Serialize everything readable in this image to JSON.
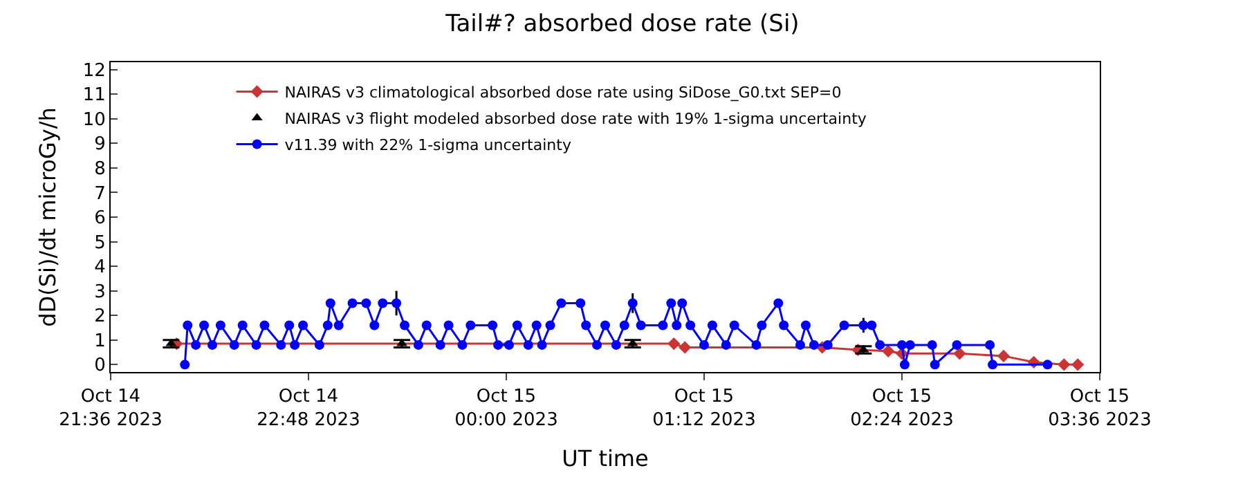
{
  "chart_data": {
    "type": "line",
    "title": "Tail#? absorbed dose rate (Si)",
    "xlabel": "UT time",
    "ylabel": "dD(Si)/dt microGy/h",
    "xlim": [
      "2023-10-14T21:36",
      "2023-10-15T03:36"
    ],
    "xticks": [
      {
        "value": "2023-10-14T21:36",
        "label": "Oct 14\n21:36 2023"
      },
      {
        "value": "2023-10-14T22:48",
        "label": "Oct 14\n22:48 2023"
      },
      {
        "value": "2023-10-15T00:00",
        "label": "Oct 15\n00:00 2023"
      },
      {
        "value": "2023-10-15T01:12",
        "label": "Oct 15\n01:12 2023"
      },
      {
        "value": "2023-10-15T02:24",
        "label": "Oct 15\n02:24 2023"
      },
      {
        "value": "2023-10-15T03:36",
        "label": "Oct 15\n03:36 2023"
      }
    ],
    "ylim": [
      -0.3,
      12.3
    ],
    "yticks": [
      0,
      1,
      2,
      3,
      4,
      5,
      6,
      7,
      8,
      9,
      10,
      11,
      12
    ],
    "legend": "top left",
    "series": [
      {
        "name": "NAIRAS v3 climatological absorbed dose rate using SiDose_G0.txt SEP=0",
        "color": "#cc3333",
        "marker": "diamond",
        "x": [
          "2023-10-14T22:00",
          "2023-10-15T01:01",
          "2023-10-15T01:05",
          "2023-10-15T01:55",
          "2023-10-15T02:08",
          "2023-10-15T02:19",
          "2023-10-15T02:24",
          "2023-10-15T02:45",
          "2023-10-15T03:01",
          "2023-10-15T03:12",
          "2023-10-15T03:23",
          "2023-10-15T03:28"
        ],
        "values": [
          0.85,
          0.85,
          0.7,
          0.7,
          0.6,
          0.55,
          0.45,
          0.45,
          0.35,
          0.1,
          0,
          0
        ]
      },
      {
        "name": "NAIRAS v3 flight modeled absorbed dose rate with 19% 1-sigma uncertainty",
        "color": "#000000",
        "marker": "triangle",
        "type": "scatter",
        "x": [
          "2023-10-14T21:58",
          "2023-10-14T23:22",
          "2023-10-15T00:46",
          "2023-10-15T02:10"
        ],
        "values": [
          0.85,
          0.85,
          0.85,
          0.6
        ],
        "errors": [
          0.15,
          0.15,
          0.15,
          0.15
        ]
      },
      {
        "name": "v11.39 with 22% 1-sigma uncertainty",
        "color": "#0000ff",
        "marker": "circle",
        "x": [
          "2023-10-14T22:03",
          "2023-10-14T22:04",
          "2023-10-14T22:07",
          "2023-10-14T22:10",
          "2023-10-14T22:13",
          "2023-10-14T22:16",
          "2023-10-14T22:21",
          "2023-10-14T22:24",
          "2023-10-14T22:29",
          "2023-10-14T22:32",
          "2023-10-14T22:38",
          "2023-10-14T22:41",
          "2023-10-14T22:43",
          "2023-10-14T22:46",
          "2023-10-14T22:52",
          "2023-10-14T22:55",
          "2023-10-14T22:56",
          "2023-10-14T22:59",
          "2023-10-14T23:04",
          "2023-10-14T23:09",
          "2023-10-14T23:12",
          "2023-10-14T23:15",
          "2023-10-14T23:20",
          "2023-10-14T23:23",
          "2023-10-14T23:28",
          "2023-10-14T23:31",
          "2023-10-14T23:36",
          "2023-10-14T23:39",
          "2023-10-14T23:44",
          "2023-10-14T23:47",
          "2023-10-14T23:55",
          "2023-10-14T23:57",
          "2023-10-15T00:01",
          "2023-10-15T00:04",
          "2023-10-15T00:08",
          "2023-10-15T00:11",
          "2023-10-15T00:13",
          "2023-10-15T00:16",
          "2023-10-15T00:20",
          "2023-10-15T00:27",
          "2023-10-15T00:29",
          "2023-10-15T00:33",
          "2023-10-15T00:36",
          "2023-10-15T00:40",
          "2023-10-15T00:43",
          "2023-10-15T00:46",
          "2023-10-15T00:49",
          "2023-10-15T00:57",
          "2023-10-15T01:00",
          "2023-10-15T01:02",
          "2023-10-15T01:04",
          "2023-10-15T01:07",
          "2023-10-15T01:12",
          "2023-10-15T01:15",
          "2023-10-15T01:20",
          "2023-10-15T01:23",
          "2023-10-15T01:31",
          "2023-10-15T01:33",
          "2023-10-15T01:39",
          "2023-10-15T01:41",
          "2023-10-15T01:47",
          "2023-10-15T01:49",
          "2023-10-15T01:52",
          "2023-10-15T01:57",
          "2023-10-15T02:03",
          "2023-10-15T02:10",
          "2023-10-15T02:13",
          "2023-10-15T02:16",
          "2023-10-15T02:24",
          "2023-10-15T02:25",
          "2023-10-15T02:27",
          "2023-10-15T02:35",
          "2023-10-15T02:36",
          "2023-10-15T02:44",
          "2023-10-15T02:56",
          "2023-10-15T02:57",
          "2023-10-15T03:17"
        ],
        "values": [
          0,
          1.6,
          0.8,
          1.6,
          0.8,
          1.6,
          0.8,
          1.6,
          0.8,
          1.6,
          0.8,
          1.6,
          0.8,
          1.6,
          0.8,
          1.6,
          2.5,
          1.6,
          2.5,
          2.5,
          1.6,
          2.5,
          2.5,
          1.6,
          0.8,
          1.6,
          0.8,
          1.6,
          0.8,
          1.6,
          1.6,
          0.8,
          0.8,
          1.6,
          0.8,
          1.6,
          0.8,
          1.6,
          2.5,
          2.5,
          1.6,
          0.8,
          1.6,
          0.8,
          1.6,
          2.5,
          1.6,
          1.6,
          2.5,
          1.6,
          2.5,
          1.6,
          0.8,
          1.6,
          0.8,
          1.6,
          0.8,
          1.6,
          2.5,
          1.6,
          0.8,
          1.6,
          0.8,
          0.8,
          1.6,
          1.6,
          1.6,
          0.8,
          0.8,
          0,
          0.8,
          0.8,
          0,
          0.8,
          0.8,
          0,
          0
        ],
        "errors": [
          null,
          null,
          null,
          null,
          null,
          null,
          null,
          null,
          null,
          null,
          null,
          null,
          null,
          null,
          null,
          null,
          null,
          null,
          null,
          null,
          null,
          null,
          0.5,
          null,
          null,
          null,
          null,
          null,
          null,
          null,
          null,
          null,
          null,
          null,
          null,
          null,
          null,
          null,
          null,
          null,
          null,
          null,
          null,
          null,
          null,
          0.4,
          null,
          null,
          null,
          null,
          null,
          null,
          null,
          null,
          null,
          null,
          null,
          null,
          null,
          null,
          null,
          null,
          null,
          null,
          null,
          0.3,
          null,
          null,
          null,
          null,
          null,
          null,
          null,
          null,
          null,
          null,
          null
        ]
      }
    ]
  }
}
